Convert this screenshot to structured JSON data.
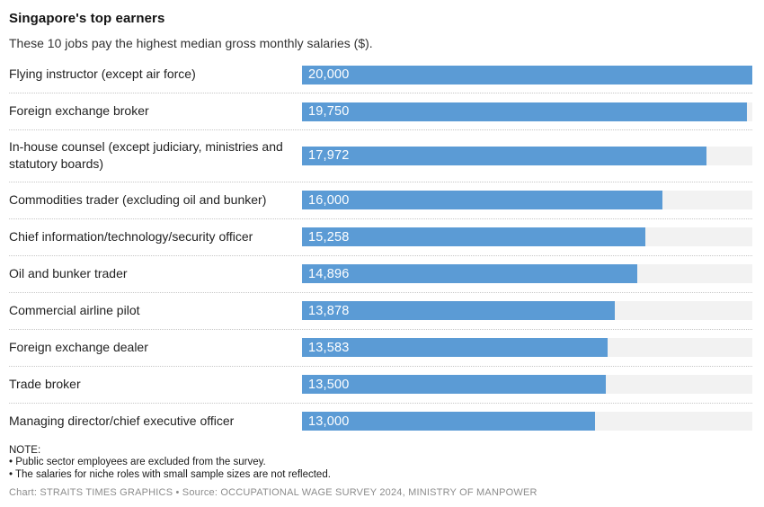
{
  "header": {
    "title": "Singapore's top earners",
    "subtitle": "These 10 jobs pay the highest median gross monthly salaries ($)."
  },
  "chart_data": {
    "type": "bar",
    "orientation": "horizontal",
    "title": "Singapore's top earners",
    "subtitle": "These 10 jobs pay the highest median gross monthly salaries ($).",
    "categories": [
      "Flying instructor (except air force)",
      "Foreign exchange broker",
      "In-house counsel (except judiciary, ministries and statutory boards)",
      "Commodities trader (excluding oil and bunker)",
      "Chief information/technology/security officer",
      "Oil and bunker trader",
      "Commercial airline pilot",
      "Foreign exchange dealer",
      "Trade broker",
      "Managing director/chief executive officer"
    ],
    "values": [
      20000,
      19750,
      17972,
      16000,
      15258,
      14896,
      13878,
      13583,
      13500,
      13000
    ],
    "value_labels": [
      "20,000",
      "19,750",
      "17,972",
      "16,000",
      "15,258",
      "14,896",
      "13,878",
      "13,583",
      "13,500",
      "13,000"
    ],
    "xlim": [
      0,
      20000
    ],
    "grid": false,
    "legend": false,
    "colors": {
      "bar": "#5b9bd5",
      "track": "#f2f2f2",
      "separator": "#c6c6c6",
      "value_text": "#ffffff"
    }
  },
  "footer": {
    "note_title": "NOTE:",
    "notes": [
      "• Public sector employees are excluded from the survey.",
      "• The salaries for niche roles with small sample sizes are not reflected."
    ],
    "credit": "Chart: STRAITS TIMES GRAPHICS • Source: OCCUPATIONAL WAGE SURVEY 2024, MINISTRY OF MANPOWER"
  }
}
